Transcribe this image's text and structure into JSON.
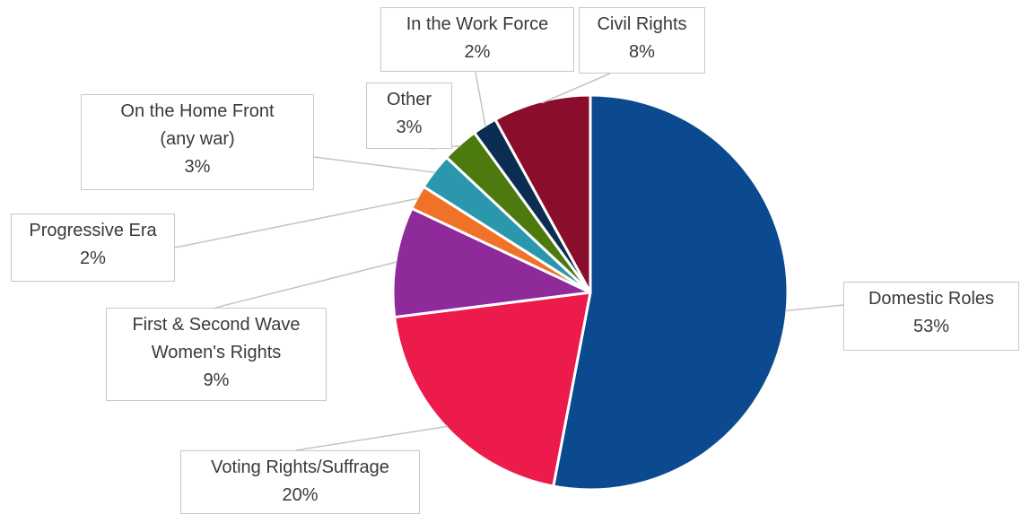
{
  "chart_data": {
    "type": "pie",
    "title": "",
    "start_angle_deg": 0,
    "direction": "clockwise",
    "slices": [
      {
        "label": "Domestic Roles",
        "label_lines": [
          "Domestic Roles"
        ],
        "value": 53,
        "value_text": "53%",
        "color": "#0b4a8f"
      },
      {
        "label": "Voting Rights/Suffrage",
        "label_lines": [
          "Voting Rights/Suffrage"
        ],
        "value": 20,
        "value_text": "20%",
        "color": "#ec1b4b"
      },
      {
        "label": "First & Second Wave Women's Rights",
        "label_lines": [
          "First & Second Wave",
          "Women's Rights"
        ],
        "value": 9,
        "value_text": "9%",
        "color": "#8e2a99"
      },
      {
        "label": "Progressive Era",
        "label_lines": [
          "Progressive Era"
        ],
        "value": 2,
        "value_text": "2%",
        "color": "#f07228"
      },
      {
        "label": "On the Home Front (any war)",
        "label_lines": [
          "On the Home Front",
          "(any war)"
        ],
        "value": 3,
        "value_text": "3%",
        "color": "#2a97ad"
      },
      {
        "label": "Other",
        "label_lines": [
          "Other"
        ],
        "value": 3,
        "value_text": "3%",
        "color": "#4d7a0f"
      },
      {
        "label": "In the Work Force",
        "label_lines": [
          "In the Work Force"
        ],
        "value": 2,
        "value_text": "2%",
        "color": "#0c2d52"
      },
      {
        "label": "Civil Rights",
        "label_lines": [
          "Civil Rights"
        ],
        "value": 8,
        "value_text": "8%",
        "color": "#8a0e2c"
      }
    ]
  }
}
